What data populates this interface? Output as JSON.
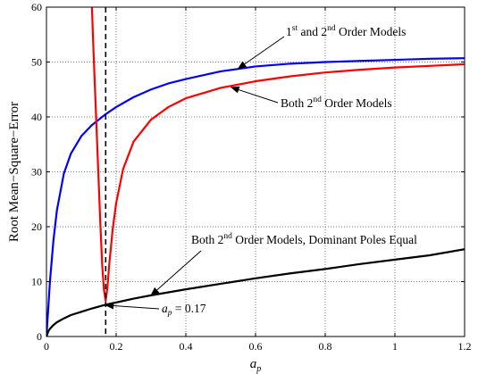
{
  "chart_data": {
    "type": "line",
    "title": "",
    "xlabel": "a_p",
    "xlabel_main": "a",
    "xlabel_sub": "p",
    "ylabel": "Root Mean−Square−Error",
    "xlim": [
      0,
      1.2
    ],
    "ylim": [
      0,
      60
    ],
    "xticks": [
      0,
      0.2,
      0.4,
      0.6,
      0.8,
      1,
      1.2
    ],
    "xtick_labels": [
      "0",
      "0.2",
      "0.4",
      "0.6",
      "0.8",
      "1",
      "1.2"
    ],
    "yticks": [
      0,
      10,
      20,
      30,
      40,
      50,
      60
    ],
    "ytick_labels": [
      "0",
      "10",
      "20",
      "30",
      "40",
      "50",
      "60"
    ],
    "grid": true,
    "legend": "none",
    "vline": {
      "x": 0.17,
      "style": "dashed",
      "color": "#000000"
    },
    "series": [
      {
        "color": "#0000ff",
        "x": [
          0,
          0.005,
          0.01,
          0.02,
          0.03,
          0.05,
          0.07,
          0.1,
          0.13,
          0.17,
          0.2,
          0.25,
          0.3,
          0.35,
          0.4,
          0.5,
          0.6,
          0.7,
          0.8,
          0.9,
          1.0,
          1.1,
          1.2
        ],
        "y": [
          0,
          5,
          10,
          17.5,
          23,
          29.7,
          33.3,
          36.5,
          38.5,
          40.5,
          41.8,
          43.6,
          45.0,
          46.1,
          46.9,
          48.3,
          49.2,
          49.7,
          50.0,
          50.2,
          50.4,
          50.6,
          50.7
        ]
      },
      {
        "color": "#ff0000",
        "x": [
          0.1305,
          0.135,
          0.14,
          0.145,
          0.15,
          0.155,
          0.16,
          0.165,
          0.17,
          0.175,
          0.18,
          0.19,
          0.2,
          0.22,
          0.25,
          0.3,
          0.35,
          0.4,
          0.5,
          0.6,
          0.7,
          0.8,
          0.9,
          1.0,
          1.1,
          1.2
        ],
        "y": [
          60,
          52,
          44,
          36,
          28,
          20,
          13,
          8.5,
          6.5,
          9,
          13,
          19.5,
          24.3,
          30.5,
          35.5,
          39.5,
          41.8,
          43.4,
          45.3,
          46.5,
          47.4,
          48.1,
          48.6,
          49.0,
          49.3,
          49.6
        ]
      },
      {
        "color": "#000000",
        "x": [
          0,
          0.005,
          0.01,
          0.02,
          0.03,
          0.05,
          0.07,
          0.1,
          0.13,
          0.17,
          0.2,
          0.25,
          0.3,
          0.4,
          0.5,
          0.6,
          0.7,
          0.8,
          0.9,
          1.0,
          1.1,
          1.2
        ],
        "y": [
          0,
          0.9,
          1.4,
          2.1,
          2.6,
          3.3,
          3.9,
          4.5,
          5.1,
          5.8,
          6.2,
          6.9,
          7.5,
          8.6,
          9.6,
          10.6,
          11.5,
          12.3,
          13.2,
          14.0,
          14.8,
          15.9
        ]
      }
    ],
    "annotations": [
      {
        "id": "annotation-first-second-order",
        "parts": [
          {
            "t": "1"
          },
          {
            "t": "st",
            "sup": true
          },
          {
            "t": " and 2"
          },
          {
            "t": "nd",
            "sup": true
          },
          {
            "t": " Order Models"
          }
        ],
        "arrow_to": [
          0.55,
          48.8
        ]
      },
      {
        "id": "annotation-both-second-order",
        "parts": [
          {
            "t": "Both 2"
          },
          {
            "t": "nd",
            "sup": true
          },
          {
            "t": " Order Models"
          }
        ],
        "arrow_to": [
          0.53,
          45.4
        ]
      },
      {
        "id": "annotation-dominant-poles-equal",
        "parts": [
          {
            "t": "Both 2"
          },
          {
            "t": "nd",
            "sup": true
          },
          {
            "t": " Order Models, Dominant Poles Equal"
          }
        ],
        "arrow_to": [
          0.3,
          7.5
        ]
      },
      {
        "id": "annotation-ap-value",
        "parts": [
          {
            "t": "a",
            "italic": true
          },
          {
            "t": "p",
            "sub": true,
            "italic": true
          },
          {
            "t": " = 0.17"
          }
        ],
        "arrow_to": [
          0.17,
          5.7
        ]
      }
    ]
  }
}
